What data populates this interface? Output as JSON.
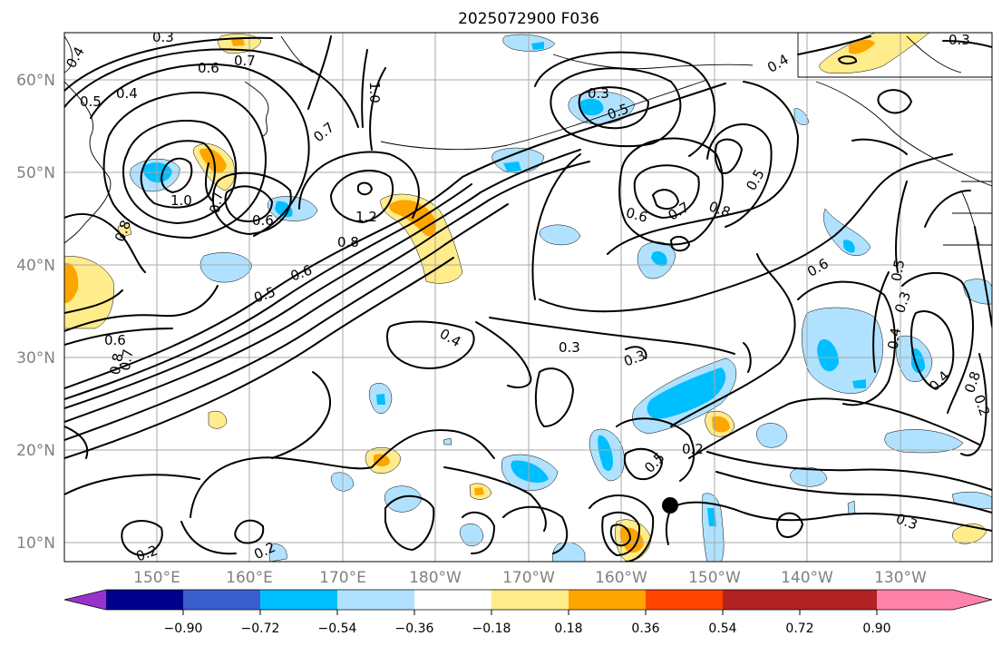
{
  "title": "2025072900 F036",
  "axes": {
    "lat_labels": [
      "60°N",
      "50°N",
      "40°N",
      "30°N",
      "20°N",
      "10°N"
    ],
    "lon_labels": [
      "150°E",
      "160°E",
      "170°E",
      "180°W",
      "170°W",
      "160°W",
      "150°W",
      "140°W",
      "130°W"
    ]
  },
  "colorbar": {
    "ticks": [
      "−0.90",
      "−0.72",
      "−0.54",
      "−0.36",
      "−0.18",
      "0.18",
      "0.36",
      "0.54",
      "0.72",
      "0.90"
    ],
    "colors": [
      "#9932cc",
      "#00008b",
      "#3a5fcd",
      "#00bfff",
      "#b0e2ff",
      "#ffffff",
      "#ffec8b",
      "#ffa500",
      "#ff4500",
      "#b22222",
      "#ff82ab"
    ]
  },
  "contour_labels": [
    {
      "id": "a",
      "text": "0.3"
    },
    {
      "id": "b",
      "text": "0.4"
    },
    {
      "id": "c",
      "text": "0.5"
    },
    {
      "id": "d",
      "text": "0.4"
    },
    {
      "id": "e",
      "text": "0.6"
    },
    {
      "id": "f",
      "text": "0.7"
    },
    {
      "id": "g",
      "text": "1.0"
    },
    {
      "id": "h",
      "text": "0.7"
    },
    {
      "id": "i",
      "text": "1.0"
    },
    {
      "id": "j",
      "text": "0.6"
    },
    {
      "id": "k",
      "text": "1.2"
    },
    {
      "id": "l",
      "text": "0.8"
    },
    {
      "id": "m",
      "text": "0.6"
    },
    {
      "id": "n",
      "text": "0.5"
    },
    {
      "id": "o",
      "text": "0.8"
    },
    {
      "id": "p",
      "text": "0.6"
    },
    {
      "id": "q",
      "text": "0.8"
    },
    {
      "id": "r",
      "text": "0.7"
    },
    {
      "id": "s",
      "text": "0.4"
    },
    {
      "id": "t",
      "text": "0.3"
    },
    {
      "id": "u",
      "text": "0.3"
    },
    {
      "id": "v",
      "text": "0.3"
    },
    {
      "id": "w",
      "text": "0.4"
    },
    {
      "id": "x",
      "text": "0.3"
    },
    {
      "id": "y",
      "text": "0.2"
    },
    {
      "id": "z",
      "text": "0.2"
    },
    {
      "id": "aa",
      "text": "0.2"
    },
    {
      "id": "ab",
      "text": "0.5"
    },
    {
      "id": "ac",
      "text": "0.7"
    },
    {
      "id": "ad",
      "text": "0.6"
    },
    {
      "id": "ae",
      "text": "0.8"
    },
    {
      "id": "af",
      "text": "0.5"
    },
    {
      "id": "ag",
      "text": "0.6"
    },
    {
      "id": "ah",
      "text": "0.5"
    },
    {
      "id": "ai",
      "text": "0.3"
    },
    {
      "id": "aj",
      "text": "0.4"
    },
    {
      "id": "ak",
      "text": "0.4"
    },
    {
      "id": "al",
      "text": "0.8"
    },
    {
      "id": "am",
      "text": "0.2"
    },
    {
      "id": "an",
      "text": "0.3"
    },
    {
      "id": "ao",
      "text": "0.5"
    },
    {
      "id": "ap",
      "text": "0.7"
    }
  ],
  "marker": {
    "label": "storm-position"
  }
}
